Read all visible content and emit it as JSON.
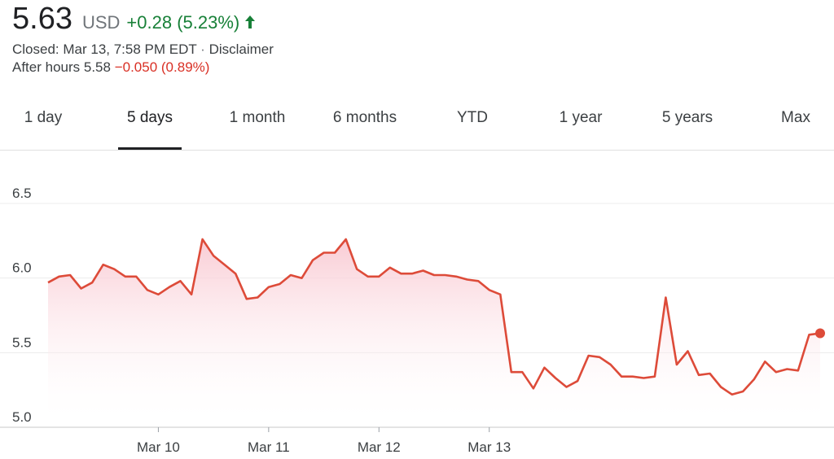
{
  "quote": {
    "price": "5.63",
    "currency": "USD",
    "change": "+0.28 (5.23%)",
    "closed_text": "Closed: Mar 13, 7:58 PM EDT",
    "separator": " · ",
    "disclaimer": "Disclaimer",
    "after_hours_label": "After hours 5.58",
    "after_hours_change": "−0.050 (0.89%)"
  },
  "colors": {
    "up": "#188038",
    "down": "#d93025",
    "line": "#dd4b39",
    "fill": "#fce8ec"
  },
  "tabs": [
    {
      "label": "1 day",
      "active": false
    },
    {
      "label": "5 days",
      "active": true
    },
    {
      "label": "1 month",
      "active": false
    },
    {
      "label": "6 months",
      "active": false
    },
    {
      "label": "YTD",
      "active": false
    },
    {
      "label": "1 year",
      "active": false
    },
    {
      "label": "5 years",
      "active": false
    },
    {
      "label": "Max",
      "active": false
    }
  ],
  "chart_data": {
    "type": "area",
    "title": "",
    "xlabel": "",
    "ylabel": "",
    "ylim": [
      5.0,
      6.5
    ],
    "yticks": [
      "5.0",
      "5.5",
      "6.0",
      "6.5"
    ],
    "xticks": [
      {
        "label": "Mar 10",
        "index": 10
      },
      {
        "label": "Mar 11",
        "index": 20
      },
      {
        "label": "Mar 12",
        "index": 30
      },
      {
        "label": "Mar 13",
        "index": 40
      }
    ],
    "grid": true,
    "values": [
      5.97,
      6.01,
      6.02,
      5.93,
      5.97,
      6.09,
      6.06,
      6.01,
      6.01,
      5.92,
      5.89,
      5.94,
      5.98,
      5.89,
      6.26,
      6.15,
      6.09,
      6.03,
      5.86,
      5.87,
      5.94,
      5.96,
      6.02,
      6.0,
      6.12,
      6.17,
      6.17,
      6.26,
      6.06,
      6.01,
      6.01,
      6.07,
      6.03,
      6.03,
      6.05,
      6.02,
      6.02,
      6.01,
      5.99,
      5.98,
      5.92,
      5.89,
      5.37,
      5.37,
      5.26,
      5.4,
      5.33,
      5.27,
      5.31,
      5.48,
      5.47,
      5.42,
      5.34,
      5.34,
      5.33,
      5.34,
      5.87,
      5.42,
      5.51,
      5.35,
      5.36,
      5.27,
      5.22,
      5.24,
      5.32,
      5.44,
      5.37,
      5.39,
      5.38,
      5.62,
      5.63
    ],
    "last_value": 5.63
  }
}
